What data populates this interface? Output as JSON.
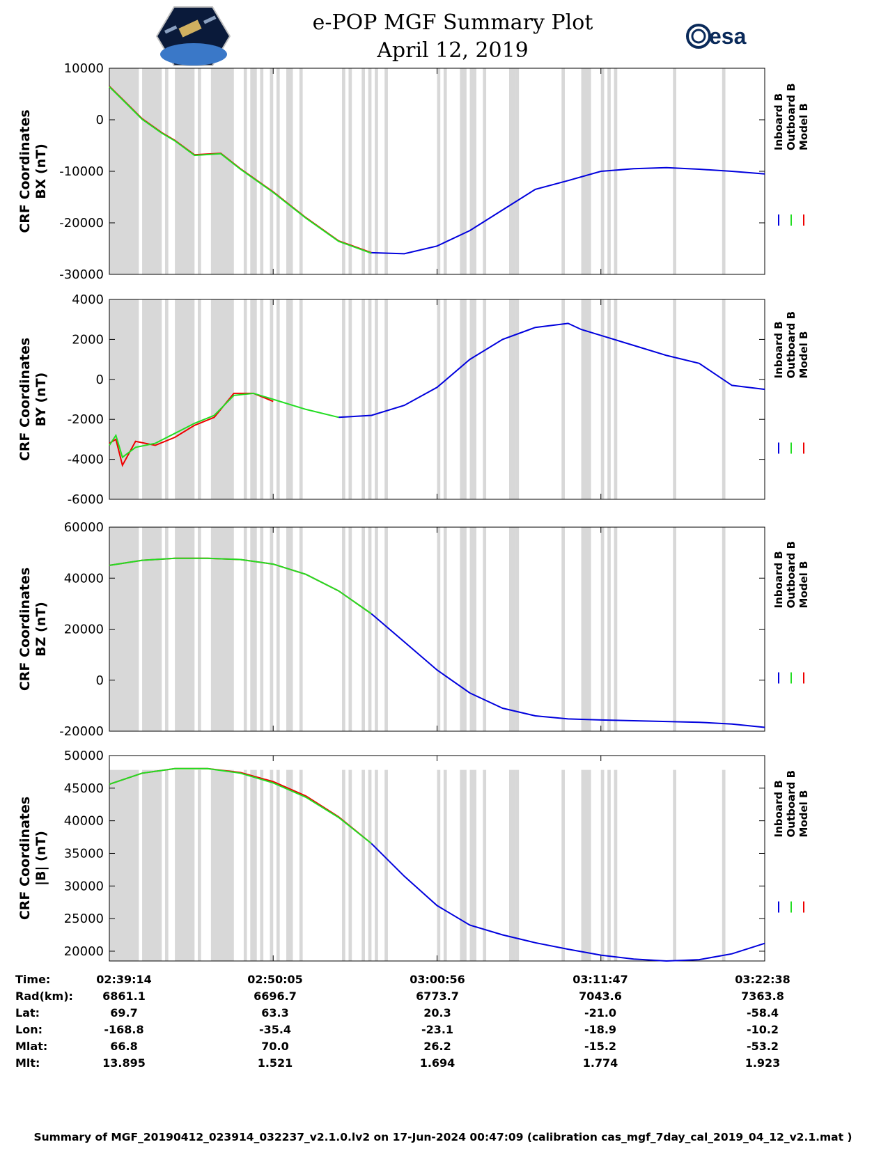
{
  "header": {
    "title": "e-POP MGF Summary Plot",
    "date": "April 12, 2019",
    "left_logo": "cassiope-satellite-logo",
    "right_logo": "esa-logo",
    "right_logo_text": "esa"
  },
  "colors": {
    "inboard": "#0000dd",
    "outboard": "#22dd22",
    "model": "#ee0000",
    "gap_shading": "#d8d8d8"
  },
  "chart_data": [
    {
      "type": "line",
      "name": "BX",
      "ylabel_line1": "CRF Coordinates",
      "ylabel_line2": "BX (nT)",
      "ylim": [
        -30000,
        10000
      ],
      "yticks": [
        10000,
        0,
        -10000,
        -20000,
        -30000
      ],
      "ytick_labels": [
        "10000",
        "0",
        "-10000",
        "-20000",
        "-30000"
      ],
      "xlim": [
        0,
        1.0
      ],
      "legend": [
        "Inboard B",
        "Outboard B",
        "Model B"
      ],
      "series": [
        {
          "name": "Model B",
          "x": [
            0,
            0.02,
            0.05,
            0.08,
            0.1,
            0.13,
            0.17,
            0.2,
            0.25,
            0.3,
            0.35,
            0.4
          ],
          "y": [
            6500,
            4000,
            200,
            -2500,
            -4000,
            -6800,
            -6500,
            -9500,
            -14000,
            -19000,
            -23500,
            -25800
          ]
        },
        {
          "name": "Outboard B",
          "x": [
            0,
            0.02,
            0.05,
            0.08,
            0.1,
            0.13,
            0.17,
            0.2,
            0.25,
            0.3,
            0.35,
            0.4
          ],
          "y": [
            6400,
            3900,
            100,
            -2600,
            -4100,
            -6900,
            -6600,
            -9600,
            -14100,
            -19100,
            -23600,
            -25900
          ]
        },
        {
          "name": "Inboard B",
          "x": [
            0.4,
            0.45,
            0.5,
            0.55,
            0.6,
            0.65,
            0.7,
            0.75,
            0.8,
            0.85,
            0.9,
            0.95,
            1.0
          ],
          "y": [
            -25800,
            -26000,
            -24500,
            -21500,
            -17500,
            -13500,
            -11800,
            -10000,
            -9500,
            -9300,
            -9600,
            -10000,
            -10500
          ]
        }
      ]
    },
    {
      "type": "line",
      "name": "BY",
      "ylabel_line1": "CRF Coordinates",
      "ylabel_line2": "BY (nT)",
      "ylim": [
        -6000,
        4000
      ],
      "yticks": [
        4000,
        2000,
        0,
        -2000,
        -4000,
        -6000
      ],
      "ytick_labels": [
        "4000",
        "2000",
        "0",
        "-2000",
        "-4000",
        "-6000"
      ],
      "xlim": [
        0,
        1.0
      ],
      "legend": [
        "Inboard B",
        "Outboard B",
        "Model B"
      ],
      "series": [
        {
          "name": "Model B",
          "x": [
            0,
            0.01,
            0.02,
            0.04,
            0.07,
            0.1,
            0.13,
            0.16,
            0.19,
            0.22,
            0.25
          ],
          "y": [
            -3200,
            -3000,
            -4300,
            -3100,
            -3300,
            -2900,
            -2300,
            -1900,
            -700,
            -700,
            -1100
          ]
        },
        {
          "name": "Outboard B",
          "x": [
            0,
            0.01,
            0.02,
            0.04,
            0.07,
            0.1,
            0.13,
            0.16,
            0.19,
            0.22,
            0.25,
            0.3,
            0.35
          ],
          "y": [
            -3300,
            -2800,
            -3900,
            -3400,
            -3200,
            -2700,
            -2200,
            -1800,
            -800,
            -700,
            -1000,
            -1500,
            -1900
          ]
        },
        {
          "name": "Inboard B",
          "x": [
            0.35,
            0.4,
            0.45,
            0.5,
            0.55,
            0.6,
            0.65,
            0.7,
            0.72,
            0.75,
            0.8,
            0.85,
            0.9,
            0.95,
            1.0
          ],
          "y": [
            -1900,
            -1800,
            -1300,
            -400,
            1000,
            2000,
            2600,
            2800,
            2500,
            2200,
            1700,
            1200,
            800,
            -300,
            -500
          ]
        }
      ]
    },
    {
      "type": "line",
      "name": "BZ",
      "ylabel_line1": "CRF Coordinates",
      "ylabel_line2": "BZ (nT)",
      "ylim": [
        -20000,
        60000
      ],
      "yticks": [
        60000,
        40000,
        20000,
        0,
        -20000
      ],
      "ytick_labels": [
        "60000",
        "40000",
        "20000",
        "0",
        "-20000"
      ],
      "xlim": [
        0,
        1.0
      ],
      "legend": [
        "Inboard B",
        "Outboard B",
        "Model B"
      ],
      "series": [
        {
          "name": "Model B",
          "x": [
            0,
            0.05,
            0.1,
            0.15,
            0.2,
            0.25,
            0.3,
            0.35,
            0.4
          ],
          "y": [
            45000,
            47000,
            47800,
            47800,
            47300,
            45500,
            41500,
            35000,
            26000
          ]
        },
        {
          "name": "Outboard B",
          "x": [
            0,
            0.05,
            0.1,
            0.15,
            0.2,
            0.25,
            0.3,
            0.35,
            0.4
          ],
          "y": [
            45000,
            47000,
            47800,
            47800,
            47300,
            45500,
            41500,
            35000,
            26000
          ]
        },
        {
          "name": "Inboard B",
          "x": [
            0.4,
            0.45,
            0.5,
            0.55,
            0.6,
            0.65,
            0.7,
            0.75,
            0.8,
            0.85,
            0.9,
            0.95,
            1.0
          ],
          "y": [
            26000,
            15000,
            4000,
            -5000,
            -11000,
            -14000,
            -15200,
            -15600,
            -15900,
            -16200,
            -16500,
            -17200,
            -18500
          ]
        }
      ]
    },
    {
      "type": "line",
      "name": "|B|",
      "ylabel_line1": "CRF Coordinates",
      "ylabel_line2": "|B| (nT)",
      "ylim": [
        18500,
        50000
      ],
      "yticks": [
        50000,
        45000,
        40000,
        35000,
        30000,
        25000,
        20000
      ],
      "ytick_labels": [
        "50000",
        "45000",
        "40000",
        "35000",
        "30000",
        "25000",
        "20000"
      ],
      "xlim": [
        0,
        1.0
      ],
      "legend": [
        "Inboard B",
        "Outboard B",
        "Model B"
      ],
      "series": [
        {
          "name": "Model B",
          "x": [
            0,
            0.05,
            0.1,
            0.15,
            0.2,
            0.25,
            0.3,
            0.35,
            0.4
          ],
          "y": [
            45600,
            47300,
            48000,
            48000,
            47400,
            46000,
            43800,
            40600,
            36500
          ]
        },
        {
          "name": "Outboard B",
          "x": [
            0,
            0.05,
            0.1,
            0.15,
            0.2,
            0.25,
            0.3,
            0.35,
            0.4
          ],
          "y": [
            45600,
            47300,
            48000,
            48000,
            47300,
            45800,
            43600,
            40500,
            36500
          ]
        },
        {
          "name": "Inboard B",
          "x": [
            0.4,
            0.45,
            0.5,
            0.55,
            0.6,
            0.65,
            0.7,
            0.75,
            0.8,
            0.85,
            0.9,
            0.95,
            1.0
          ],
          "y": [
            36500,
            31500,
            27000,
            24000,
            22500,
            21300,
            20300,
            19400,
            18800,
            18500,
            18700,
            19600,
            21200
          ]
        }
      ]
    }
  ],
  "gap_intervals": [
    [
      0.0,
      0.045
    ],
    [
      0.05,
      0.08
    ],
    [
      0.085,
      0.09
    ],
    [
      0.1,
      0.13
    ],
    [
      0.135,
      0.14
    ],
    [
      0.155,
      0.19
    ],
    [
      0.205,
      0.21
    ],
    [
      0.215,
      0.225
    ],
    [
      0.23,
      0.235
    ],
    [
      0.245,
      0.25
    ],
    [
      0.255,
      0.26
    ],
    [
      0.27,
      0.28
    ],
    [
      0.29,
      0.295
    ],
    [
      0.355,
      0.36
    ],
    [
      0.365,
      0.37
    ],
    [
      0.385,
      0.39
    ],
    [
      0.395,
      0.4
    ],
    [
      0.405,
      0.41
    ],
    [
      0.42,
      0.425
    ],
    [
      0.5,
      0.505
    ],
    [
      0.51,
      0.515
    ],
    [
      0.535,
      0.545
    ],
    [
      0.55,
      0.56
    ],
    [
      0.57,
      0.575
    ],
    [
      0.61,
      0.62
    ],
    [
      0.62,
      0.625
    ],
    [
      0.69,
      0.695
    ],
    [
      0.72,
      0.735
    ],
    [
      0.75,
      0.755
    ],
    [
      0.76,
      0.765
    ],
    [
      0.77,
      0.775
    ],
    [
      0.86,
      0.865
    ],
    [
      0.935,
      0.94
    ]
  ],
  "table": {
    "row_labels": [
      "Time:",
      "Rad(km):",
      "Lat:",
      "Lon:",
      "Mlat:",
      "Mlt:"
    ],
    "columns": [
      [
        "02:39:14",
        "6861.1",
        "69.7",
        "-168.8",
        "66.8",
        "13.895"
      ],
      [
        "02:50:05",
        "6696.7",
        "63.3",
        "-35.4",
        "70.0",
        "1.521"
      ],
      [
        "03:00:56",
        "6773.7",
        "20.3",
        "-23.1",
        "26.2",
        "1.694"
      ],
      [
        "03:11:47",
        "7043.6",
        "-21.0",
        "-18.9",
        "-15.2",
        "1.774"
      ],
      [
        "03:22:38",
        "7363.8",
        "-58.4",
        "-10.2",
        "-53.2",
        "1.923"
      ]
    ]
  },
  "footer": "Summary of MGF_20190412_023914_032237_v2.1.0.lv2 on 17-Jun-2024 00:47:09 (calibration cas_mgf_7day_cal_2019_04_12_v2.1.mat )"
}
